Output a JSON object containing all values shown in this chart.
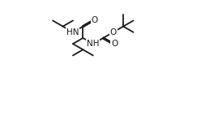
{
  "bg": "#ffffff",
  "lc": "#1a1a1a",
  "lw": 1.3,
  "fs": 7.5,
  "u": 0.088,
  "labels": {
    "HN_amide": "HN",
    "O_amide": "O",
    "O_carb_double": "O",
    "O_ether": "O",
    "NH_carbamate": "NH"
  }
}
